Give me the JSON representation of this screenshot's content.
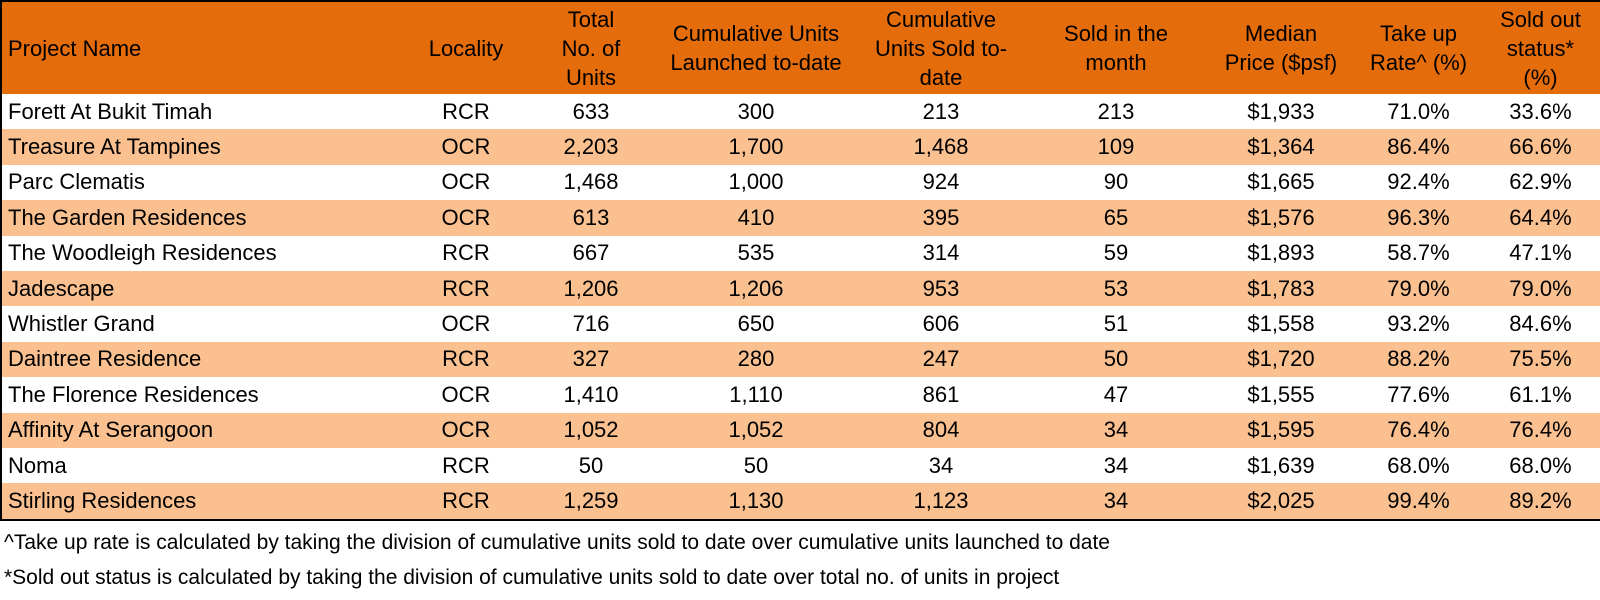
{
  "table": {
    "header": [
      "Project Name",
      "Locality",
      "Total\nNo. of\nUnits",
      "Cumulative Units\nLaunched to-date",
      "Cumulative\nUnits Sold to-\ndate",
      "Sold in the\nmonth",
      "Median\nPrice ($psf)",
      "Take up\nRate^ (%)",
      "Sold out\nstatus*\n(%)"
    ],
    "rows": [
      [
        "Forett At Bukit Timah",
        "RCR",
        "633",
        "300",
        "213",
        "213",
        "$1,933",
        "71.0%",
        "33.6%"
      ],
      [
        "Treasure At Tampines",
        "OCR",
        "2,203",
        "1,700",
        "1,468",
        "109",
        "$1,364",
        "86.4%",
        "66.6%"
      ],
      [
        "Parc Clematis",
        "OCR",
        "1,468",
        "1,000",
        "924",
        "90",
        "$1,665",
        "92.4%",
        "62.9%"
      ],
      [
        "The Garden Residences",
        "OCR",
        "613",
        "410",
        "395",
        "65",
        "$1,576",
        "96.3%",
        "64.4%"
      ],
      [
        "The Woodleigh Residences",
        "RCR",
        "667",
        "535",
        "314",
        "59",
        "$1,893",
        "58.7%",
        "47.1%"
      ],
      [
        "Jadescape",
        "RCR",
        "1,206",
        "1,206",
        "953",
        "53",
        "$1,783",
        "79.0%",
        "79.0%"
      ],
      [
        "Whistler Grand",
        "OCR",
        "716",
        "650",
        "606",
        "51",
        "$1,558",
        "93.2%",
        "84.6%"
      ],
      [
        "Daintree Residence",
        "RCR",
        "327",
        "280",
        "247",
        "50",
        "$1,720",
        "88.2%",
        "75.5%"
      ],
      [
        "The Florence Residences",
        "OCR",
        "1,410",
        "1,110",
        "861",
        "47",
        "$1,555",
        "77.6%",
        "61.1%"
      ],
      [
        "Affinity At Serangoon",
        "OCR",
        "1,052",
        "1,052",
        "804",
        "34",
        "$1,595",
        "76.4%",
        "76.4%"
      ],
      [
        "Noma",
        "RCR",
        "50",
        "50",
        "34",
        "34",
        "$1,639",
        "68.0%",
        "68.0%"
      ],
      [
        "Stirling Residences",
        "RCR",
        "1,259",
        "1,130",
        "1,123",
        "34",
        "$2,025",
        "99.4%",
        "89.2%"
      ]
    ]
  },
  "footnotes": [
    "^Take up rate is calculated by taking the division of cumulative units sold to date over cumulative units launched to date",
    "*Sold out status is calculated by taking the division of cumulative units sold to date over total no. of units in project"
  ]
}
